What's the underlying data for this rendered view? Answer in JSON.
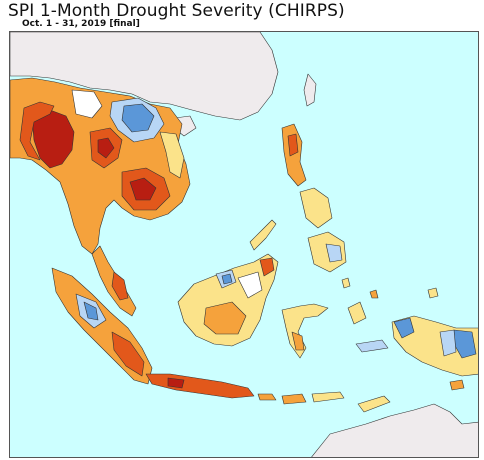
{
  "title": "SPI 1-Month Drought Severity (CHIRPS)",
  "subtitle": "Oct. 1 - 31, 2019 [final]",
  "colors": {
    "ocean": "#ccffff",
    "land_neutral": "#ffffff",
    "outside_land": "#efebed",
    "dry_slight": "#fbe38a",
    "dry_moderate": "#f5a23c",
    "dry_severe": "#e2581b",
    "dry_extreme": "#b81e12",
    "wet_slight": "#b8d6f5",
    "wet_moderate": "#5b97d8",
    "border": "#333333"
  }
}
